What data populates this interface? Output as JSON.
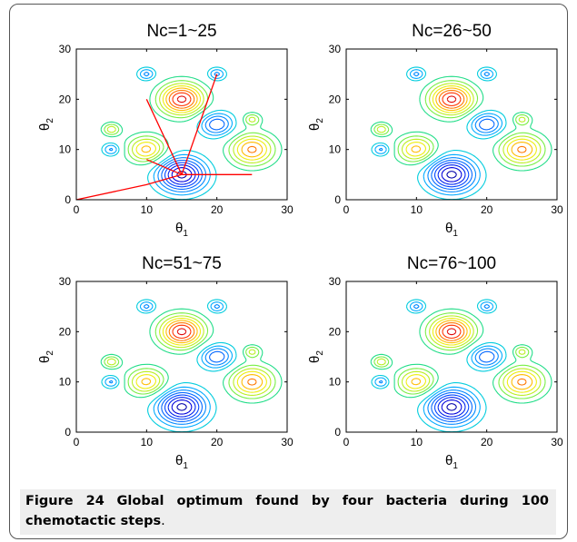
{
  "figure": {
    "caption_label": "Figure 24",
    "caption_text": "Global optimum found by four bacteria during 100 chemotactic steps",
    "caption_end": "."
  },
  "chart_data": [
    {
      "type": "contour",
      "title": "Nc=1~25",
      "xlabel": "θ1",
      "ylabel": "θ2",
      "xlim": [
        0,
        30
      ],
      "ylim": [
        0,
        30
      ],
      "xticks": [
        0,
        10,
        20,
        30
      ],
      "yticks": [
        0,
        10,
        20,
        30
      ],
      "paths": [
        {
          "color": "#ff0000",
          "points": [
            [
              0,
              0
            ],
            [
              10,
              3
            ],
            [
              15,
              5
            ],
            [
              25,
              5
            ]
          ]
        },
        {
          "color": "#ff0000",
          "points": [
            [
              10,
              20
            ],
            [
              15,
              5
            ]
          ]
        },
        {
          "color": "#ff0000",
          "points": [
            [
              20,
              25
            ],
            [
              15,
              5
            ]
          ]
        },
        {
          "color": "#ff0000",
          "points": [
            [
              15,
              5
            ],
            [
              10,
              8
            ]
          ]
        }
      ]
    },
    {
      "type": "contour",
      "title": "Nc=26~50",
      "xlabel": "θ1",
      "ylabel": "θ2",
      "xlim": [
        0,
        30
      ],
      "ylim": [
        0,
        30
      ],
      "xticks": [
        0,
        10,
        20,
        30
      ],
      "yticks": [
        0,
        10,
        20,
        30
      ],
      "paths": []
    },
    {
      "type": "contour",
      "title": "Nc=51~75",
      "xlabel": "θ1",
      "ylabel": "θ2",
      "xlim": [
        0,
        30
      ],
      "ylim": [
        0,
        30
      ],
      "xticks": [
        0,
        10,
        20,
        30
      ],
      "yticks": [
        0,
        10,
        20,
        30
      ],
      "paths": []
    },
    {
      "type": "contour",
      "title": "Nc=76~100",
      "xlabel": "θ1",
      "ylabel": "θ2",
      "xlim": [
        0,
        30
      ],
      "ylim": [
        0,
        30
      ],
      "xticks": [
        0,
        10,
        20,
        30
      ],
      "yticks": [
        0,
        10,
        20,
        30
      ],
      "paths": []
    }
  ],
  "surface": {
    "peaks": [
      {
        "x": 15,
        "y": 20,
        "sign": 1,
        "amp": 1.0,
        "sigma": 2.2
      },
      {
        "x": 25,
        "y": 10,
        "sign": 1,
        "amp": 0.75,
        "sigma": 2.2
      },
      {
        "x": 10,
        "y": 10,
        "sign": 1,
        "amp": 0.65,
        "sigma": 1.9
      },
      {
        "x": 5,
        "y": 14,
        "sign": 1,
        "amp": 0.45,
        "sigma": 0.9
      },
      {
        "x": 25,
        "y": 16,
        "sign": 1,
        "amp": 0.4,
        "sigma": 0.9
      },
      {
        "x": 15,
        "y": 5,
        "sign": -1,
        "amp": 1.0,
        "sigma": 2.4
      },
      {
        "x": 20,
        "y": 15,
        "sign": -1,
        "amp": 0.6,
        "sigma": 1.7
      },
      {
        "x": 10,
        "y": 25,
        "sign": -1,
        "amp": 0.4,
        "sigma": 0.9
      },
      {
        "x": 20,
        "y": 25,
        "sign": -1,
        "amp": 0.4,
        "sigma": 0.9
      },
      {
        "x": 5,
        "y": 10,
        "sign": -1,
        "amp": 0.4,
        "sigma": 0.9
      }
    ],
    "levels": [
      0.12,
      0.24,
      0.36,
      0.48,
      0.6,
      0.72,
      0.84,
      0.96
    ],
    "colors_pos": [
      "#22dd88",
      "#77ee44",
      "#bbee22",
      "#eeee11",
      "#ffbb00",
      "#ff7700",
      "#ff3300",
      "#dd0000"
    ],
    "colors_neg": [
      "#00ccdd",
      "#00aaff",
      "#0088ff",
      "#0066ff",
      "#0044ff",
      "#0022ee",
      "#0000dd",
      "#0000aa"
    ]
  }
}
